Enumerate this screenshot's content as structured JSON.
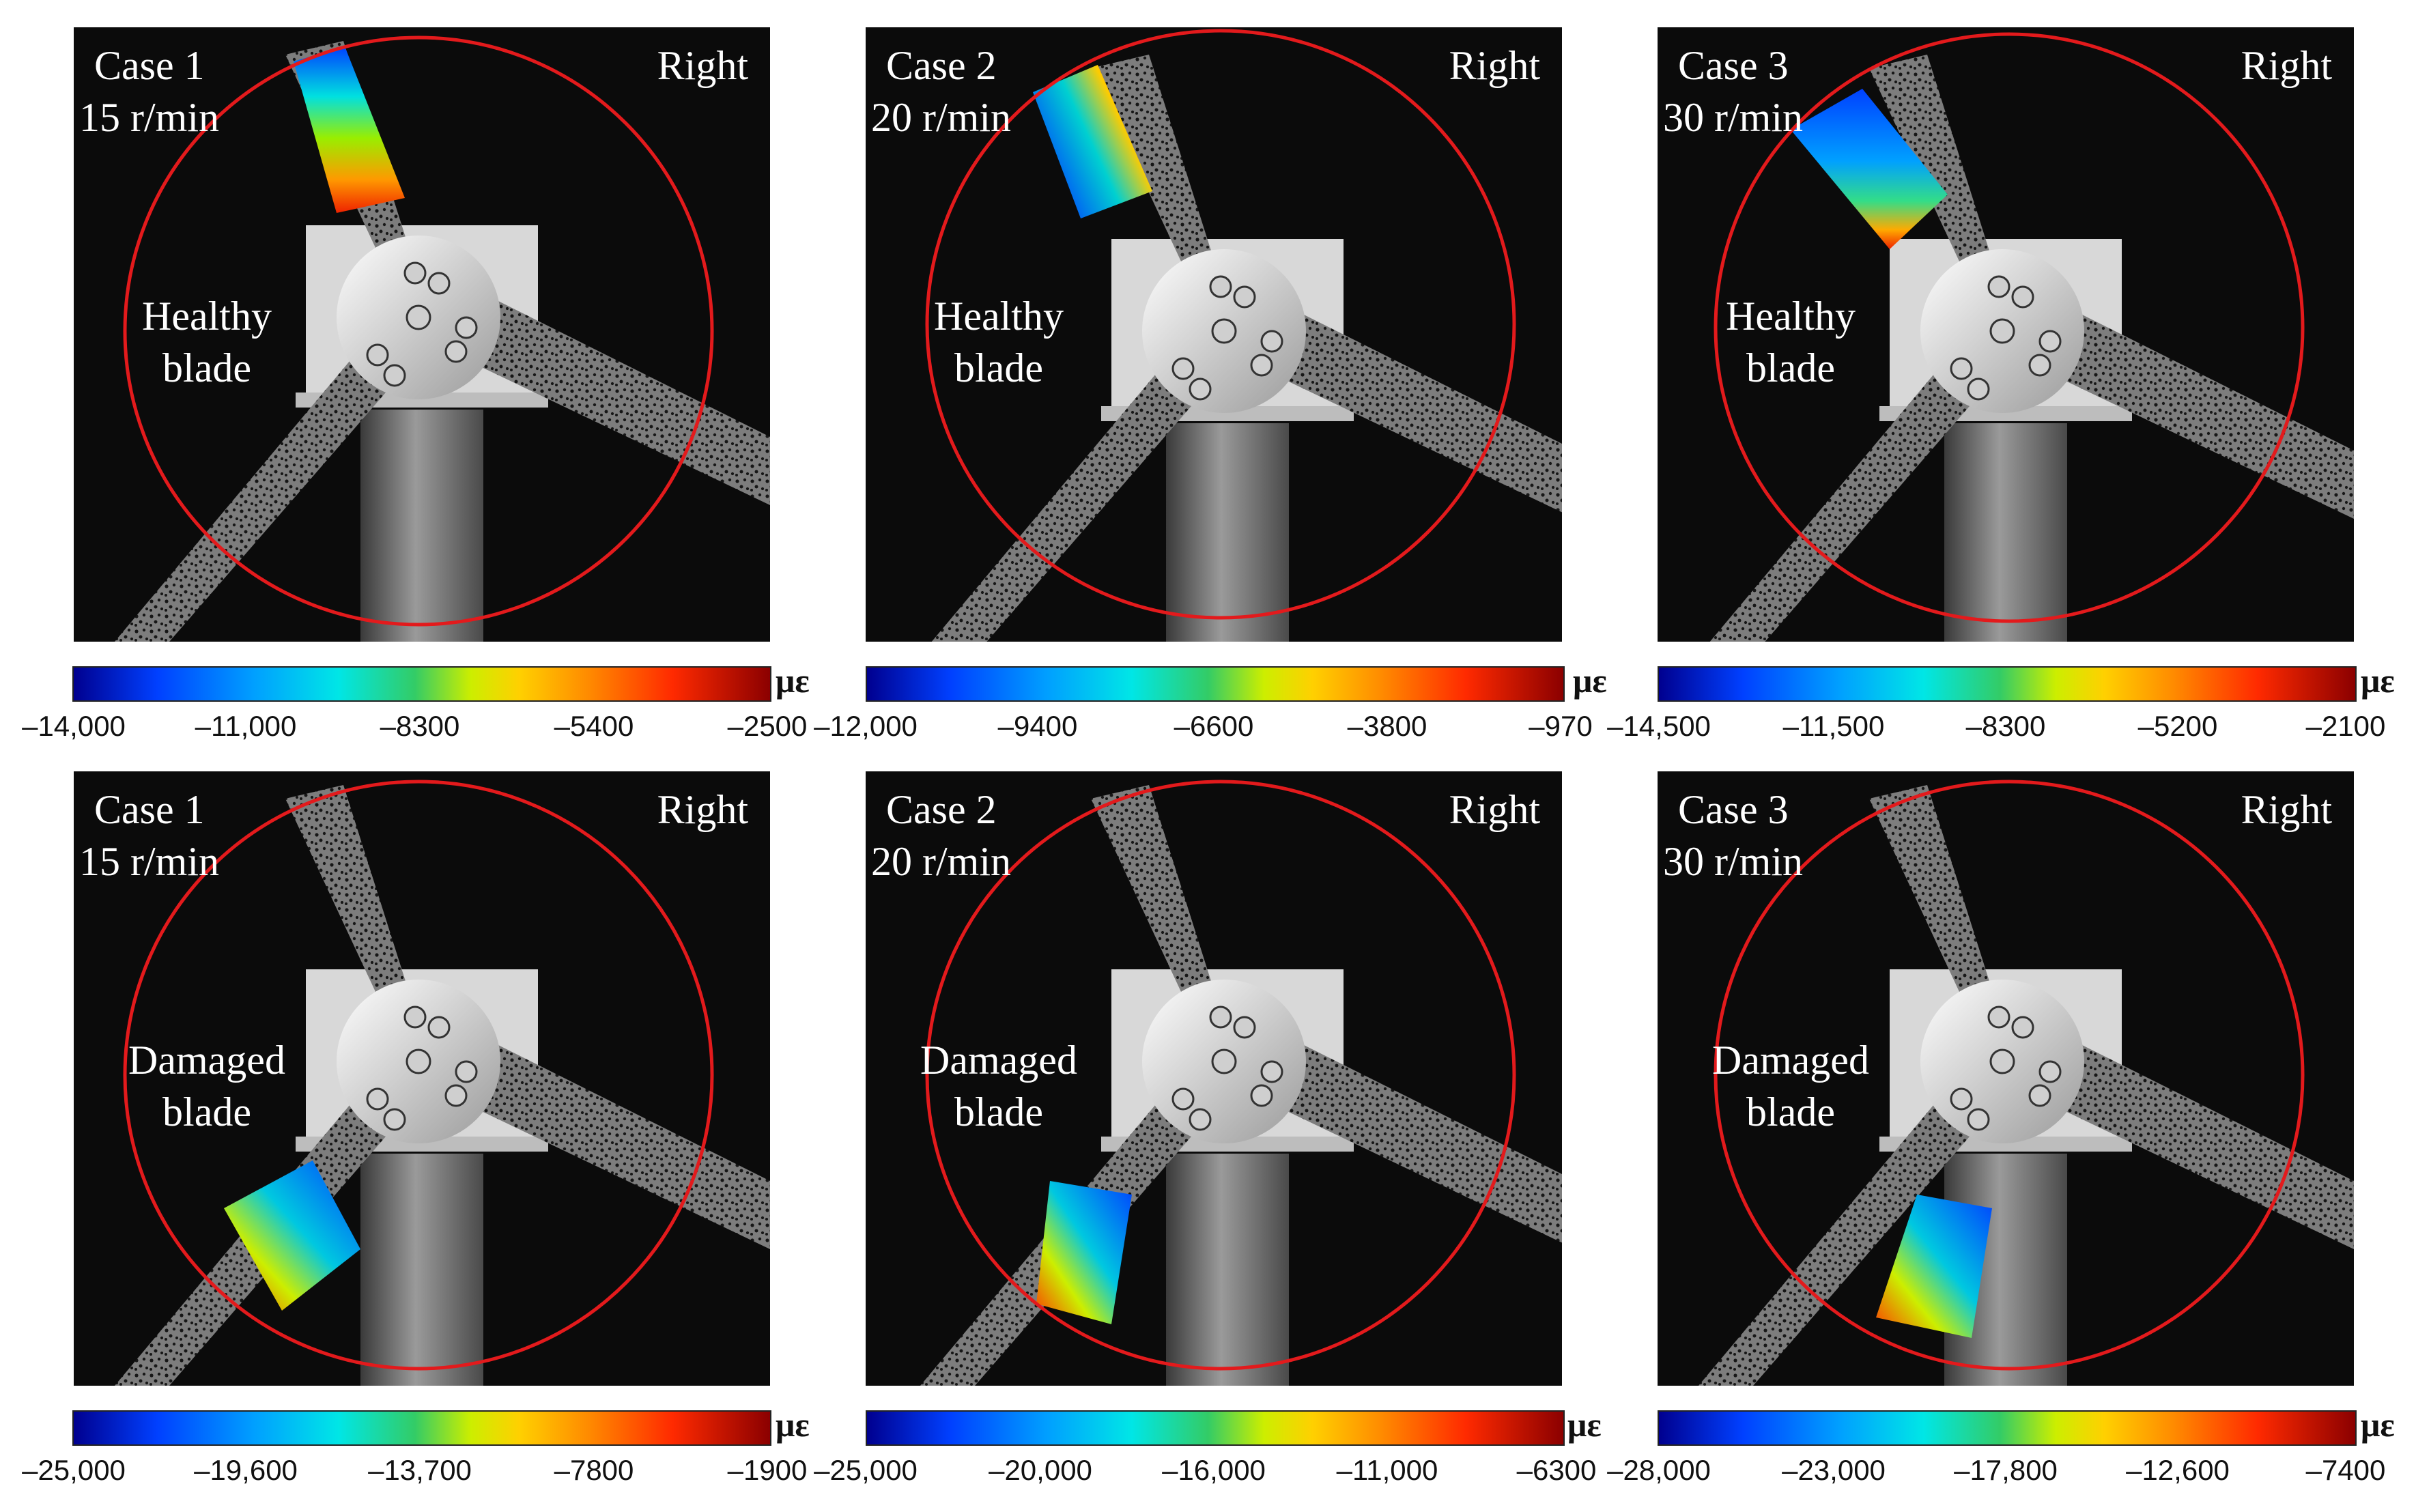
{
  "colors": {
    "circle": "#e31a1c",
    "background": "#0b0b0b",
    "text": "#ffffff"
  },
  "colorbar": {
    "unit": "με"
  },
  "panels": [
    {
      "case": "Case 1",
      "speed": "15 r/min",
      "side": "Right",
      "blade": "Healthy blade",
      "ticks": [
        "–14,000",
        "–11,000",
        "–8300",
        "–5400",
        "–2500"
      ]
    },
    {
      "case": "Case 2",
      "speed": "20 r/min",
      "side": "Right",
      "blade": "Healthy blade",
      "ticks": [
        "–12,000",
        "–9400",
        "–6600",
        "–3800",
        "–970"
      ]
    },
    {
      "case": "Case 3",
      "speed": "30 r/min",
      "side": "Right",
      "blade": "Healthy blade",
      "ticks": [
        "–14,500",
        "–11,500",
        "–8300",
        "–5200",
        "–2100"
      ]
    },
    {
      "case": "Case 1",
      "speed": "15 r/min",
      "side": "Right",
      "blade": "Damaged blade",
      "ticks": [
        "–25,000",
        "–19,600",
        "–13,700",
        "–7800",
        "–1900"
      ]
    },
    {
      "case": "Case 2",
      "speed": "20 r/min",
      "side": "Right",
      "blade": "Damaged blade",
      "ticks": [
        "–25,000",
        "–20,000",
        "–16,000",
        "–11,000",
        "–6300"
      ]
    },
    {
      "case": "Case 3",
      "speed": "30 r/min",
      "side": "Right",
      "blade": "Damaged blade",
      "ticks": [
        "–28,000",
        "–23,000",
        "–17,800",
        "–12,600",
        "–7400"
      ]
    }
  ]
}
